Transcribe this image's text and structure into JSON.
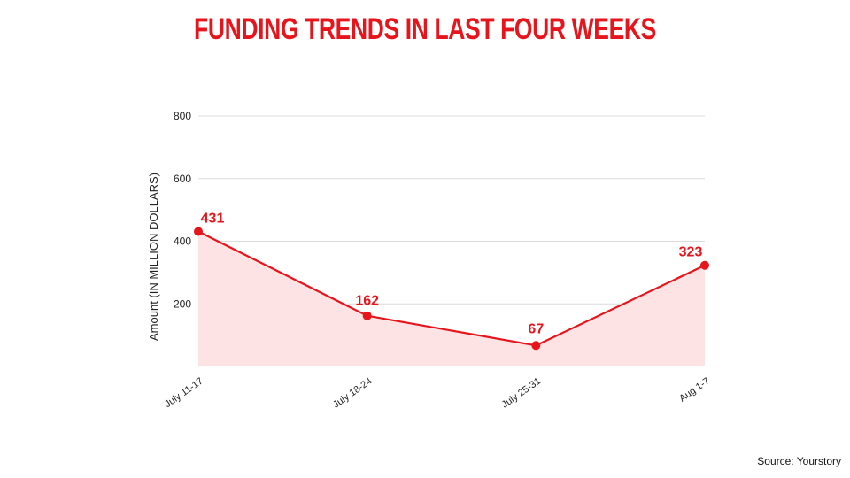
{
  "page": {
    "title": "FUNDING TRENDS IN LAST FOUR WEEKS",
    "source": "Source: Yourstory"
  },
  "colors": {
    "accent": "#e8141c",
    "area_fill": "#fde3e4",
    "grid": "#dcdcdc",
    "text": "#222222"
  },
  "chart_data": {
    "type": "area",
    "title": "FUNDING TRENDS IN LAST FOUR WEEKS",
    "xlabel": "",
    "ylabel": "Amount (IN MILLION DOLLARS)",
    "categories": [
      "July 11-17",
      "July 18-24",
      "July 25-31",
      "Aug 1-7"
    ],
    "values": [
      431,
      162,
      67,
      323
    ],
    "data_labels": [
      "431",
      "162",
      "67",
      "323"
    ],
    "y_ticks": [
      200,
      400,
      600,
      800
    ],
    "y_tick_labels": [
      "200",
      "400",
      "600",
      "800"
    ],
    "ylim": [
      0,
      800
    ],
    "grid": true,
    "legend": "none"
  }
}
